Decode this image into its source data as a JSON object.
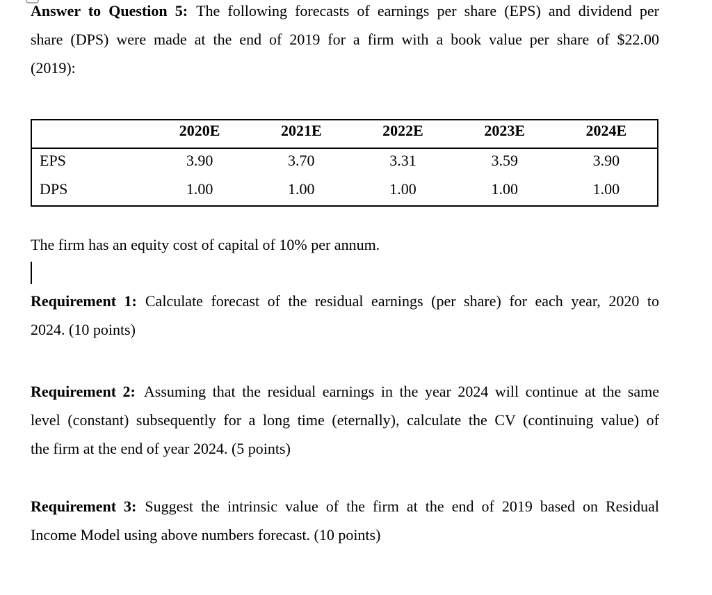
{
  "page": {
    "background": "#ffffff",
    "text_color": "#000000",
    "table_border_color": "#000000",
    "marker_border_color": "#a8a8a8"
  },
  "paragraphs": {
    "intro": {
      "label": "Answer to Question 5:",
      "lines": [
        "The following forecasts of earnings per share (EPS) and dividend per",
        "share (DPS) were made at the end of 2019 for a firm with a book value per share of $22.00",
        "(2019):"
      ]
    },
    "cost_of_capital": {
      "text": "The firm has an equity cost of capital of 10% per annum."
    },
    "requirement1": {
      "label": "Requirement 1:",
      "lines": [
        "Calculate forecast of the residual earnings (per share) for each year, 2020 to",
        "2024. (10 points)"
      ]
    },
    "requirement2": {
      "label": "Requirement 2:",
      "lines": [
        "Assuming that the residual earnings in the year 2024 will continue at the same",
        "level (constant) subsequently for a long time (eternally), calculate the CV (continuing value) of",
        "the firm at the end of year 2024. (5 points)"
      ]
    },
    "requirement3": {
      "label": "Requirement 3:",
      "lines": [
        "Suggest the intrinsic value of the firm at the end of 2019 based on Residual",
        "Income Model using above numbers forecast. (10 points)"
      ]
    }
  },
  "table": {
    "column_headers": [
      "",
      "2020E",
      "2021E",
      "2022E",
      "2023E",
      "2024E"
    ],
    "rows": [
      {
        "label": "EPS",
        "values": [
          "3.90",
          "3.70",
          "3.31",
          "3.59",
          "3.90"
        ]
      },
      {
        "label": "DPS",
        "values": [
          "1.00",
          "1.00",
          "1.00",
          "1.00",
          "1.00"
        ]
      }
    ]
  }
}
